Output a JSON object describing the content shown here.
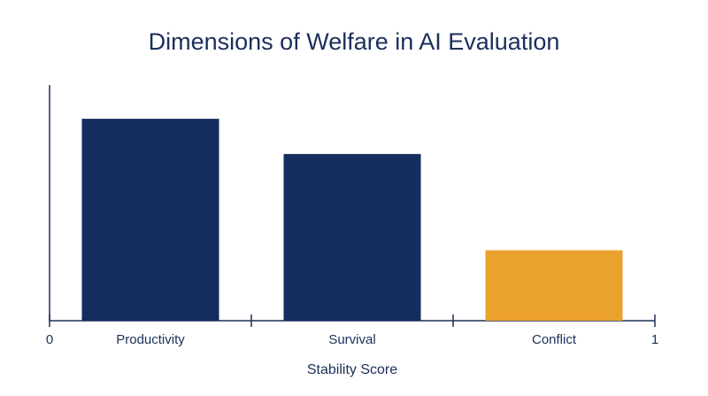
{
  "chart_data": {
    "type": "bar",
    "title": "Dimensions of Welfare in AI Evaluation",
    "categories": [
      "Productivity",
      "Survival",
      "Conflict"
    ],
    "values": [
      0.86,
      0.71,
      0.3
    ],
    "colors": [
      "#132d5e",
      "#132d5e",
      "#eba22c"
    ],
    "xlabel": "Stability Score",
    "ylabel": "",
    "x_axis_ends": [
      "0",
      "1"
    ],
    "ylim": [
      0,
      1
    ],
    "grid": false,
    "legend": "none"
  }
}
